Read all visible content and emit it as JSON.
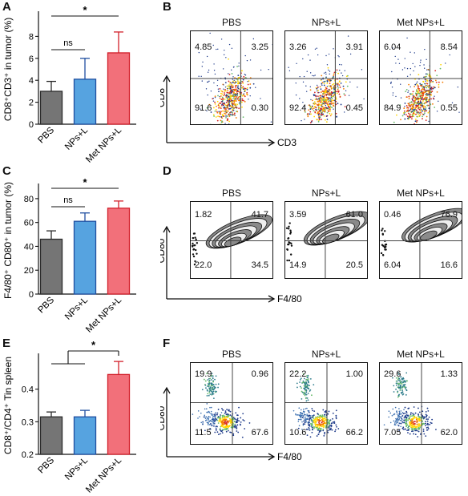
{
  "panel_letters": {
    "A": "A",
    "B": "B",
    "C": "C",
    "D": "D",
    "E": "E",
    "F": "F"
  },
  "chart_data": [
    {
      "panel": "A",
      "type": "bar",
      "categories": [
        "PBS",
        "NPs+L",
        "Met NPs+L"
      ],
      "values": [
        3.0,
        4.1,
        6.5
      ],
      "errors": [
        0.9,
        1.9,
        1.9
      ],
      "ylabel": "CD8⁺CD3⁺ in tumor (%)",
      "ylim": [
        0,
        10
      ],
      "yticks": [
        "0",
        "2",
        "4",
        "6",
        "8"
      ],
      "colors": [
        "#757575",
        "#56a3e0",
        "#f2707a"
      ],
      "edge_colors": [
        "#2b2b2b",
        "#1f4ea0",
        "#d21f2a"
      ],
      "significance": [
        {
          "from": 0,
          "to": 2,
          "label": "*"
        },
        {
          "from": 0,
          "to": 1,
          "label": "ns"
        }
      ]
    },
    {
      "panel": "C",
      "type": "bar",
      "categories": [
        "PBS",
        "NPs+L",
        "Met NPs+L"
      ],
      "values": [
        46,
        61,
        72
      ],
      "errors": [
        7,
        7,
        6
      ],
      "ylabel": "F4/80⁺ CD80⁺ in tumor (%)",
      "ylim": [
        0,
        90
      ],
      "yticks": [
        "0",
        "20",
        "40",
        "60",
        "80"
      ],
      "colors": [
        "#757575",
        "#56a3e0",
        "#f2707a"
      ],
      "edge_colors": [
        "#2b2b2b",
        "#1f4ea0",
        "#d21f2a"
      ],
      "significance": [
        {
          "from": 0,
          "to": 2,
          "label": "*"
        },
        {
          "from": 0,
          "to": 1,
          "label": "ns"
        }
      ]
    },
    {
      "panel": "E",
      "type": "bar",
      "categories": [
        "PBS",
        "NPs+L",
        "Met NPs+L"
      ],
      "values": [
        0.315,
        0.315,
        0.445
      ],
      "errors": [
        0.015,
        0.02,
        0.04
      ],
      "ylabel": "CD8⁺/CD4⁺ Tin spleen",
      "ylim": [
        0.2,
        0.5
      ],
      "yticks": [
        "0.2",
        "0.3",
        "0.4"
      ],
      "colors": [
        "#757575",
        "#56a3e0",
        "#f2707a"
      ],
      "edge_colors": [
        "#2b2b2b",
        "#1f4ea0",
        "#d21f2a"
      ],
      "significance": [
        {
          "group_from": [
            0,
            1
          ],
          "to": 2,
          "label": "*"
        }
      ]
    }
  ],
  "flow_panels": {
    "B": {
      "xlabel": "CD3",
      "ylabel": "CD8",
      "style": "density",
      "plots": [
        {
          "title": "PBS",
          "ul": "4.85",
          "ur": "3.25",
          "ll": "91.6",
          "lr": "0.30"
        },
        {
          "title": "NPs+L",
          "ul": "3.26",
          "ur": "3.91",
          "ll": "92.4",
          "lr": "0.45"
        },
        {
          "title": "Met NPs+L",
          "ul": "6.04",
          "ur": "8.54",
          "ll": "84.9",
          "lr": "0.55"
        }
      ]
    },
    "D": {
      "xlabel": "F4/80",
      "ylabel": "CD80",
      "style": "contour",
      "plots": [
        {
          "title": "PBS",
          "ul": "1.82",
          "ur": "41.7",
          "ll": "22.0",
          "lr": "34.5"
        },
        {
          "title": "NPs+L",
          "ul": "3.59",
          "ur": "61.0",
          "ll": "14.9",
          "lr": "20.5"
        },
        {
          "title": "Met NPs+L",
          "ul": "0.46",
          "ur": "76.9",
          "ll": "6.04",
          "lr": "16.6"
        }
      ]
    },
    "F": {
      "xlabel": "F4/80",
      "ylabel": "CD80",
      "style": "cluster",
      "plots": [
        {
          "title": "PBS",
          "ul": "19.9",
          "ur": "0.96",
          "ll": "11.5",
          "lr": "67.6"
        },
        {
          "title": "NPs+L",
          "ul": "22.2",
          "ur": "1.00",
          "ll": "10.6",
          "lr": "66.2"
        },
        {
          "title": "Met NPs+L",
          "ul": "29.6",
          "ur": "1.33",
          "ll": "7.05",
          "lr": "62.0"
        }
      ]
    }
  }
}
